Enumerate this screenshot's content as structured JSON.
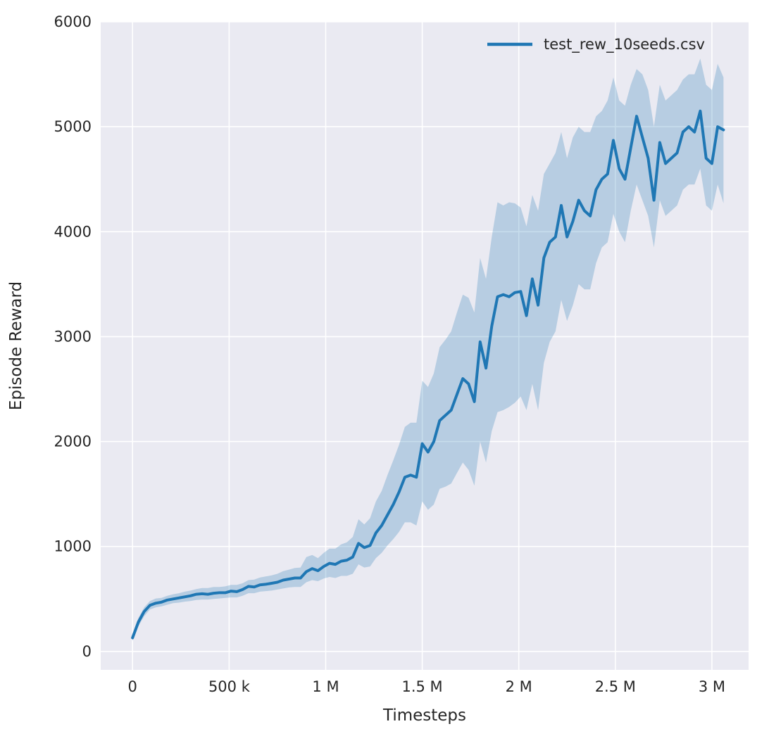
{
  "figure": {
    "background": "#ffffff",
    "panel_background": "#eaeaf2",
    "grid_color": "#ffffff",
    "line_color": "#1f77b4",
    "band_opacity": 0.25,
    "tick_label_color": "#262626",
    "axis_label_color": "#262626",
    "line_width": 4,
    "grid_width": 1.6
  },
  "chart_data": {
    "type": "line",
    "title": "",
    "xlabel": "Timesteps",
    "ylabel": "Episode Reward",
    "grid": true,
    "legend_position": "upper right",
    "legend": [
      {
        "label": "test_rew_10seeds.csv",
        "color": "#1f77b4"
      }
    ],
    "xlim": [
      -165000,
      3190000
    ],
    "ylim": [
      -175,
      6000
    ],
    "x_ticks": [
      {
        "value": 0,
        "label": "0"
      },
      {
        "value": 500000,
        "label": "500 k"
      },
      {
        "value": 1000000,
        "label": "1 M"
      },
      {
        "value": 1500000,
        "label": "1.5 M"
      },
      {
        "value": 2000000,
        "label": "2 M"
      },
      {
        "value": 2500000,
        "label": "2.5 M"
      },
      {
        "value": 3000000,
        "label": "3 M"
      }
    ],
    "y_ticks": [
      {
        "value": 0,
        "label": "0"
      },
      {
        "value": 1000,
        "label": "1000"
      },
      {
        "value": 2000,
        "label": "2000"
      },
      {
        "value": 3000,
        "label": "3000"
      },
      {
        "value": 4000,
        "label": "4000"
      },
      {
        "value": 5000,
        "label": "5000"
      },
      {
        "value": 6000,
        "label": "6000"
      }
    ],
    "series": [
      {
        "name": "test_rew_10seeds.csv",
        "x": [
          0,
          30000,
          60000,
          90000,
          120000,
          150000,
          180000,
          210000,
          240000,
          270000,
          300000,
          330000,
          360000,
          390000,
          420000,
          450000,
          480000,
          510000,
          540000,
          570000,
          600000,
          630000,
          660000,
          690000,
          720000,
          750000,
          780000,
          810000,
          840000,
          870000,
          900000,
          930000,
          960000,
          990000,
          1020000,
          1050000,
          1080000,
          1110000,
          1140000,
          1170000,
          1200000,
          1230000,
          1260000,
          1290000,
          1320000,
          1350000,
          1380000,
          1410000,
          1440000,
          1470000,
          1500000,
          1530000,
          1560000,
          1590000,
          1620000,
          1650000,
          1680000,
          1710000,
          1740000,
          1770000,
          1800000,
          1830000,
          1860000,
          1890000,
          1920000,
          1950000,
          1980000,
          2010000,
          2040000,
          2070000,
          2100000,
          2130000,
          2160000,
          2190000,
          2220000,
          2250000,
          2280000,
          2310000,
          2340000,
          2370000,
          2400000,
          2430000,
          2460000,
          2490000,
          2520000,
          2550000,
          2580000,
          2610000,
          2640000,
          2670000,
          2700000,
          2730000,
          2760000,
          2790000,
          2820000,
          2850000,
          2880000,
          2910000,
          2940000,
          2970000,
          3000000,
          3030000,
          3060000
        ],
        "mean": [
          130,
          280,
          380,
          440,
          460,
          470,
          490,
          500,
          510,
          520,
          530,
          545,
          550,
          545,
          555,
          560,
          560,
          575,
          570,
          590,
          620,
          615,
          635,
          640,
          650,
          660,
          680,
          690,
          700,
          700,
          760,
          790,
          770,
          810,
          840,
          830,
          860,
          870,
          900,
          1030,
          990,
          1010,
          1130,
          1200,
          1300,
          1400,
          1520,
          1660,
          1680,
          1660,
          1980,
          1900,
          2000,
          2200,
          2250,
          2300,
          2450,
          2600,
          2550,
          2380,
          2950,
          2700,
          3100,
          3380,
          3400,
          3380,
          3420,
          3430,
          3200,
          3550,
          3300,
          3750,
          3900,
          3950,
          4250,
          3950,
          4100,
          4300,
          4200,
          4150,
          4400,
          4500,
          4550,
          4870,
          4600,
          4500,
          4800,
          5100,
          4900,
          4700,
          4300,
          4850,
          4650,
          4700,
          4750,
          4950,
          5000,
          4950,
          5150,
          4700,
          4650,
          5000,
          4970
        ],
        "lower": [
          100,
          240,
          335,
          400,
          420,
          430,
          445,
          460,
          465,
          475,
          480,
          490,
          495,
          495,
          500,
          505,
          510,
          515,
          515,
          530,
          555,
          555,
          570,
          575,
          580,
          590,
          600,
          610,
          615,
          615,
          660,
          680,
          670,
          695,
          710,
          700,
          720,
          720,
          740,
          830,
          800,
          810,
          890,
          940,
          1010,
          1070,
          1140,
          1230,
          1230,
          1200,
          1430,
          1350,
          1400,
          1550,
          1570,
          1600,
          1700,
          1800,
          1730,
          1580,
          2000,
          1800,
          2100,
          2280,
          2300,
          2330,
          2370,
          2430,
          2300,
          2550,
          2300,
          2750,
          2950,
          3050,
          3350,
          3150,
          3300,
          3500,
          3450,
          3450,
          3700,
          3850,
          3900,
          4170,
          4000,
          3900,
          4200,
          4450,
          4300,
          4150,
          3850,
          4300,
          4150,
          4200,
          4250,
          4400,
          4450,
          4450,
          4600,
          4250,
          4200,
          4450,
          4270
        ],
        "upper": [
          160,
          320,
          420,
          480,
          505,
          510,
          530,
          545,
          555,
          570,
          580,
          595,
          605,
          605,
          615,
          615,
          620,
          635,
          635,
          650,
          680,
          685,
          705,
          715,
          725,
          740,
          765,
          780,
          795,
          800,
          900,
          920,
          890,
          940,
          980,
          980,
          1020,
          1040,
          1090,
          1260,
          1210,
          1270,
          1430,
          1530,
          1680,
          1820,
          1970,
          2140,
          2180,
          2180,
          2580,
          2520,
          2650,
          2900,
          2970,
          3050,
          3230,
          3400,
          3370,
          3230,
          3750,
          3550,
          3950,
          4280,
          4250,
          4280,
          4270,
          4230,
          4050,
          4350,
          4200,
          4550,
          4650,
          4750,
          4950,
          4700,
          4900,
          5000,
          4950,
          4950,
          5100,
          5150,
          5250,
          5470,
          5250,
          5200,
          5400,
          5550,
          5500,
          5350,
          5000,
          5400,
          5250,
          5300,
          5350,
          5450,
          5500,
          5500,
          5650,
          5400,
          5350,
          5600,
          5470
        ]
      }
    ]
  }
}
